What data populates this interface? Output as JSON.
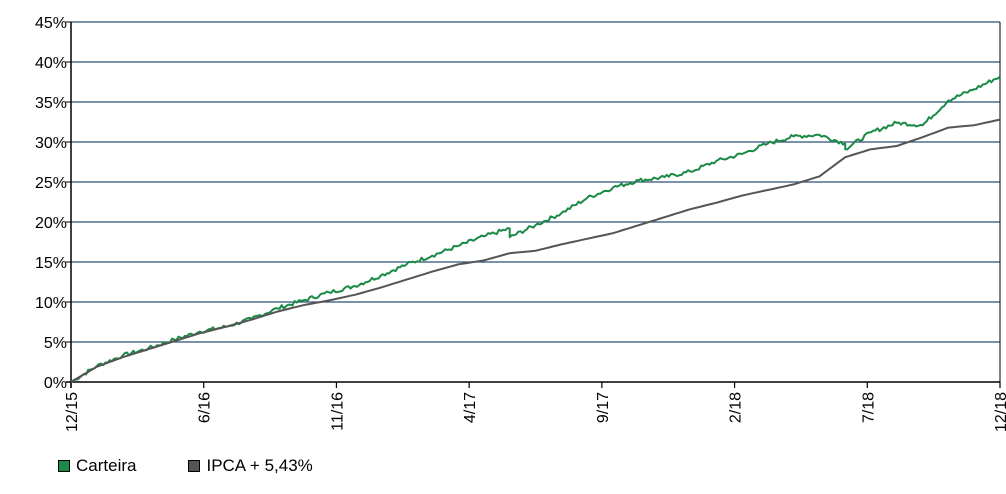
{
  "chart_data": {
    "type": "line",
    "x_ticks": [
      "12/15",
      "6/16",
      "11/16",
      "4/17",
      "9/17",
      "2/18",
      "7/18",
      "12/18"
    ],
    "y_ticks": [
      "0%",
      "5%",
      "10%",
      "15%",
      "20%",
      "25%",
      "30%",
      "35%",
      "40%",
      "45%"
    ],
    "ylim": [
      0,
      45
    ],
    "y_unit": "%",
    "grid": true,
    "legend_position": "bottom-left",
    "series": [
      {
        "name": "Carteira",
        "color": "#1a8a46",
        "x": [
          "12/15",
          "1/16",
          "2/16",
          "3/16",
          "4/16",
          "5/16",
          "6/16",
          "7/16",
          "8/16",
          "9/16",
          "10/16",
          "11/16",
          "12/16",
          "1/17",
          "2/17",
          "3/17",
          "4/17",
          "5/17",
          "5/17",
          "6/17",
          "7/17",
          "8/17",
          "9/17",
          "10/17",
          "11/17",
          "12/17",
          "1/18",
          "2/18",
          "3/18",
          "4/18",
          "5/18",
          "6/18",
          "6/18",
          "7/18",
          "8/18",
          "9/18",
          "10/18",
          "11/18",
          "12/18"
        ],
        "values": [
          0,
          2.0,
          3.3,
          4.2,
          5.3,
          6.3,
          6.9,
          7.9,
          9.2,
          10.2,
          11.2,
          12.0,
          13.3,
          14.7,
          15.8,
          17.0,
          18.2,
          19.2,
          18.1,
          19.6,
          21.1,
          23.0,
          24.3,
          25.2,
          25.6,
          26.3,
          27.6,
          28.5,
          29.8,
          30.7,
          30.9,
          29.8,
          29.1,
          31.2,
          32.4,
          32.1,
          35.2,
          36.6,
          38.2
        ]
      },
      {
        "name": "IPCA + 5,43%",
        "color": "#555555",
        "x": [
          "12/15",
          "1/16",
          "2/16",
          "3/16",
          "4/16",
          "5/16",
          "6/16",
          "7/16",
          "8/16",
          "9/16",
          "10/16",
          "11/16",
          "12/16",
          "1/17",
          "2/17",
          "3/17",
          "4/17",
          "5/17",
          "6/17",
          "7/17",
          "8/17",
          "9/17",
          "10/17",
          "11/17",
          "12/17",
          "1/18",
          "2/18",
          "3/18",
          "4/18",
          "5/18",
          "6/18",
          "7/18",
          "8/18",
          "9/18",
          "10/18",
          "11/18",
          "12/18"
        ],
        "values": [
          0,
          1.9,
          3.1,
          4.1,
          5.1,
          6.1,
          6.9,
          7.8,
          8.8,
          9.6,
          10.2,
          10.9,
          11.8,
          12.8,
          13.8,
          14.7,
          15.2,
          16.1,
          16.4,
          17.2,
          17.9,
          18.6,
          19.6,
          20.6,
          21.6,
          22.4,
          23.3,
          24.0,
          24.7,
          25.7,
          28.1,
          29.1,
          29.5,
          30.6,
          31.8,
          32.1,
          32.8
        ]
      }
    ]
  }
}
